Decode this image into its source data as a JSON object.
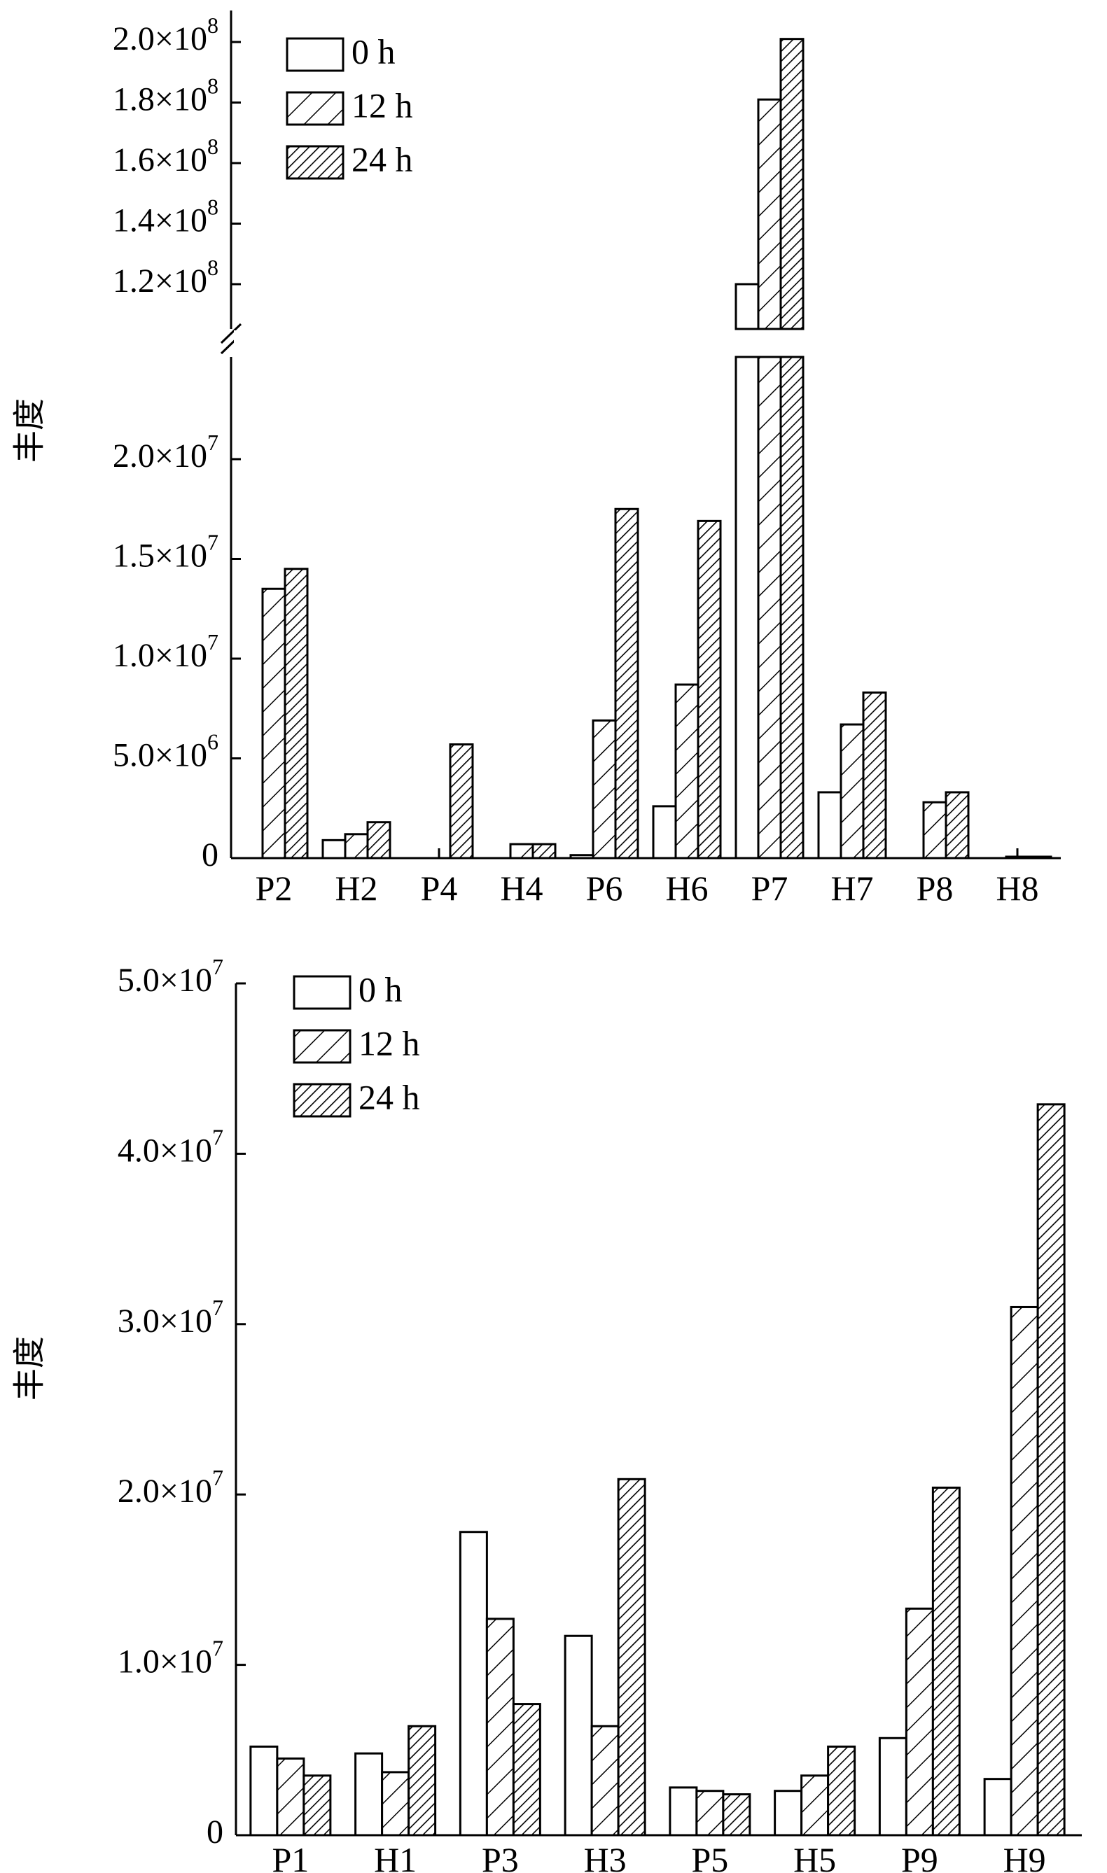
{
  "chart_data": [
    {
      "type": "bar",
      "ylabel": "丰度",
      "categories": [
        "P2",
        "H2",
        "P4",
        "H4",
        "P6",
        "H6",
        "P7",
        "H7",
        "P8",
        "H8"
      ],
      "series": [
        {
          "name": "0 h",
          "pattern": "empty",
          "values": [
            0,
            900000,
            0,
            0,
            150000,
            2600000,
            120000000,
            3300000,
            0,
            0
          ]
        },
        {
          "name": "12 h",
          "pattern": "sparse-hatch",
          "values": [
            13500000,
            1200000,
            0,
            700000,
            6900000,
            8700000,
            181000000,
            6700000,
            2800000,
            50000
          ]
        },
        {
          "name": "24 h",
          "pattern": "dense-hatch",
          "values": [
            14500000,
            1800000,
            5700000,
            700000,
            17500000,
            16900000,
            201000000,
            8300000,
            3300000,
            50000
          ]
        }
      ],
      "y_axis": {
        "broken": true,
        "lower_range": [
          0,
          25000000
        ],
        "upper_range": [
          110000000,
          205000000
        ],
        "lower_ticks": [
          {
            "value": 0,
            "label": "0"
          },
          {
            "value": 5000000,
            "label": "5.0×10",
            "exp": "6"
          },
          {
            "value": 10000000,
            "label": "1.0×10",
            "exp": "7"
          },
          {
            "value": 15000000,
            "label": "1.5×10",
            "exp": "7"
          },
          {
            "value": 20000000,
            "label": "2.0×10",
            "exp": "7"
          }
        ],
        "upper_ticks": [
          {
            "value": 120000000,
            "label": "1.2×10",
            "exp": "8"
          },
          {
            "value": 140000000,
            "label": "1.4×10",
            "exp": "8"
          },
          {
            "value": 160000000,
            "label": "1.6×10",
            "exp": "8"
          },
          {
            "value": 180000000,
            "label": "1.8×10",
            "exp": "8"
          },
          {
            "value": 200000000,
            "label": "2.0×10",
            "exp": "8"
          }
        ]
      },
      "legend": "top-left"
    },
    {
      "type": "bar",
      "ylabel": "丰度",
      "categories": [
        "P1",
        "H1",
        "P3",
        "H3",
        "P5",
        "H5",
        "P9",
        "H9"
      ],
      "series": [
        {
          "name": "0 h",
          "pattern": "empty",
          "values": [
            5200000,
            4800000,
            17800000,
            11700000,
            2800000,
            2600000,
            5700000,
            3300000
          ]
        },
        {
          "name": "12 h",
          "pattern": "sparse-hatch",
          "values": [
            4500000,
            3700000,
            12700000,
            6400000,
            2600000,
            3500000,
            13300000,
            31000000
          ]
        },
        {
          "name": "24 h",
          "pattern": "dense-hatch",
          "values": [
            3500000,
            6400000,
            7700000,
            20900000,
            2400000,
            5200000,
            20400000,
            42900000
          ]
        }
      ],
      "y_axis": {
        "range": [
          0,
          50000000
        ],
        "ticks": [
          {
            "value": 0,
            "label": "0"
          },
          {
            "value": 10000000,
            "label": "1.0×10",
            "exp": "7"
          },
          {
            "value": 20000000,
            "label": "2.0×10",
            "exp": "7"
          },
          {
            "value": 30000000,
            "label": "3.0×10",
            "exp": "7"
          },
          {
            "value": 40000000,
            "label": "4.0×10",
            "exp": "7"
          },
          {
            "value": 50000000,
            "label": "5.0×10",
            "exp": "7"
          }
        ]
      },
      "legend": "top-left"
    }
  ]
}
